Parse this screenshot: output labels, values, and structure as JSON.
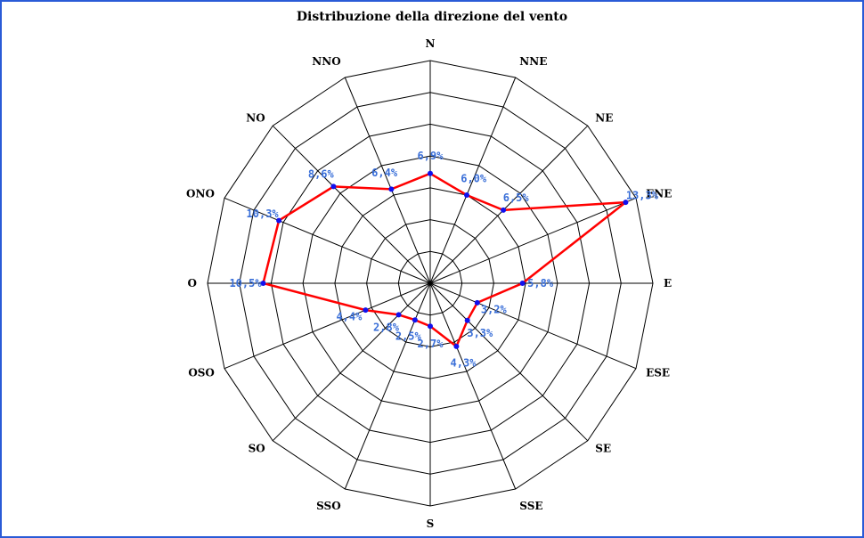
{
  "chart_data": {
    "type": "radar",
    "title": "Distribuzione della direzione del vento",
    "categories": [
      "N",
      "NNE",
      "NE",
      "ENE",
      "E",
      "ESE",
      "SE",
      "SSE",
      "S",
      "SSO",
      "SO",
      "OSO",
      "O",
      "ONO",
      "NO",
      "NNO"
    ],
    "values": [
      6.9,
      6.0,
      6.5,
      13.3,
      5.8,
      3.2,
      3.3,
      4.3,
      2.7,
      2.5,
      2.8,
      4.4,
      10.5,
      10.3,
      8.6,
      6.4
    ],
    "value_labels": [
      "6,9%",
      "6,0%",
      "6,5%",
      "13,3%",
      "5,8%",
      "3,2%",
      "3,3%",
      "4,3%",
      "2,7%",
      "2,5%",
      "2,8%",
      "4,4%",
      "10,5%",
      "10,3%",
      "8,6%",
      "6,4%"
    ],
    "rlim": [
      0,
      14
    ],
    "rings": 7,
    "grid": true,
    "colors": {
      "line": "#ff0000",
      "points": "#1010ee",
      "labels": "#3a6fd8",
      "frame": "#2a5bd7"
    }
  }
}
